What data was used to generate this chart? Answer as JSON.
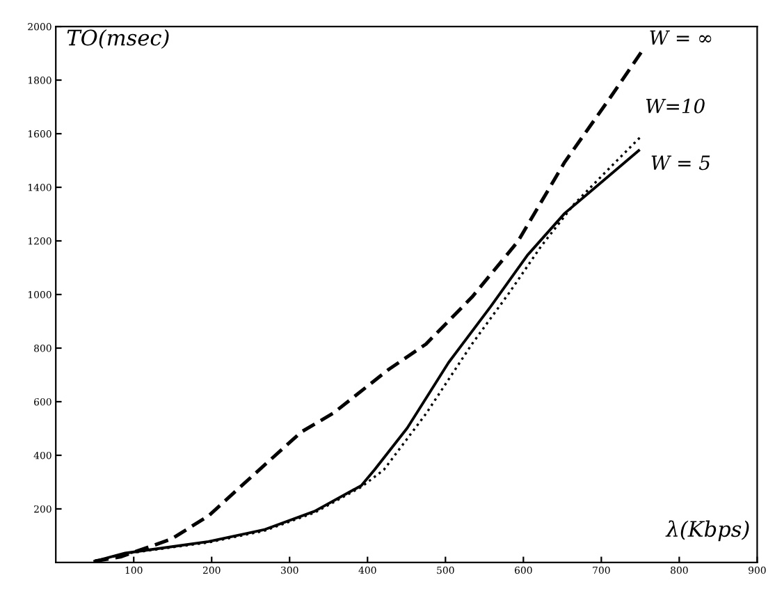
{
  "chart_data": {
    "type": "line",
    "xlabel": "λ(Kbps)",
    "ylabel": "TO(msec)",
    "xlim": [
      0,
      900
    ],
    "xticks": [
      100,
      200,
      300,
      400,
      500,
      600,
      700,
      800,
      900
    ],
    "ylim": [
      0,
      2000
    ],
    "yticks": [
      200,
      400,
      600,
      800,
      1000,
      1200,
      1400,
      1600,
      1800,
      2000
    ],
    "grid": false,
    "legend": false,
    "series": [
      {
        "name": "W = ∞",
        "color": "#000000",
        "line_style": "dashed",
        "x": [
          50,
          83,
          148,
          196,
          255,
          315,
          356,
          427,
          475,
          534,
          593,
          653,
          712,
          751
        ],
        "values": [
          5,
          21,
          87,
          174,
          330,
          487,
          557,
          720,
          815,
          990,
          1198,
          1494,
          1737,
          1903
        ]
      },
      {
        "name": "W=10",
        "color": "#000000",
        "line_style": "dotted",
        "x": [
          50,
          89,
          196,
          267,
          332,
          392,
          421,
          475,
          534,
          582,
          623,
          665,
          712,
          751
        ],
        "values": [
          5,
          33,
          75,
          118,
          186,
          282,
          346,
          555,
          815,
          1007,
          1181,
          1337,
          1476,
          1590
        ]
      },
      {
        "name": "W = 5",
        "color": "#000000",
        "line_style": "solid",
        "x": [
          50,
          89,
          196,
          267,
          332,
          392,
          409,
          451,
          504,
          558,
          605,
          653,
          688,
          748
        ],
        "values": [
          5,
          35,
          78,
          122,
          191,
          287,
          346,
          502,
          746,
          955,
          1146,
          1303,
          1389,
          1537
        ]
      }
    ]
  }
}
